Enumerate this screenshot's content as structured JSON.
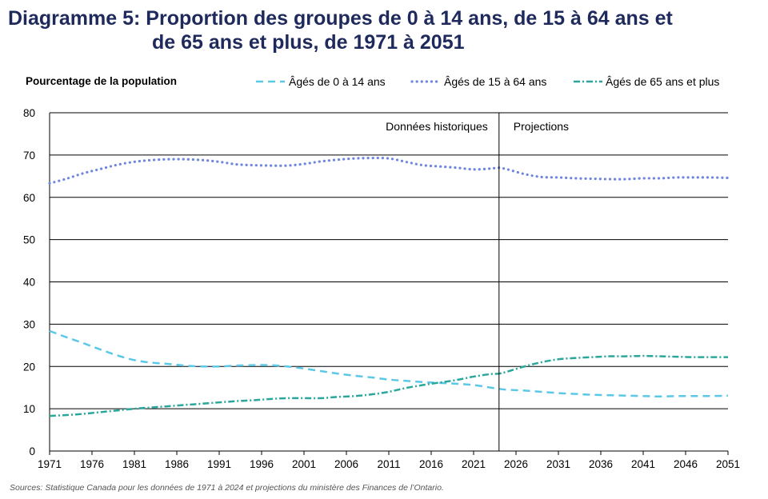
{
  "title_line1": "Diagramme 5: Proportion des groupes de 0 à 14 ans, de 15 à 64 ans et",
  "title_line2": "de 65 ans et plus, de 1971 à 2051",
  "source": "Sources: Statistique Canada pour les données de 1971 à 2024 et projections du ministère des Finances de l’Ontario.",
  "colors": {
    "youth": "#5bc8e6",
    "working": "#6f86e0",
    "senior": "#2aa79b",
    "grid": "#000000"
  },
  "chart_data": {
    "type": "line",
    "title": "Diagramme 5: Proportion des groupes de 0 à 14 ans, de 15 à 64 ans et de 65 ans et plus, de 1971 à 2051",
    "ylabel": "Pourcentage de la population",
    "xlabel": "",
    "xlim": [
      1971,
      2051
    ],
    "ylim": [
      0,
      80
    ],
    "yticks": [
      "0",
      "10",
      "20",
      "30",
      "40",
      "50",
      "60",
      "70",
      "80"
    ],
    "xticks": [
      "1971",
      "1976",
      "1981",
      "1986",
      "1991",
      "1996",
      "2001",
      "2006",
      "2011",
      "2016",
      "2021",
      "2026",
      "2031",
      "2036",
      "2041",
      "2046",
      "2051"
    ],
    "divider_year": 2024,
    "annotations": {
      "historical": "Données historiques",
      "projections": "Projections"
    },
    "x": [
      1971,
      1973,
      1975,
      1977,
      1979,
      1981,
      1983,
      1985,
      1987,
      1989,
      1991,
      1993,
      1995,
      1997,
      1999,
      2001,
      2003,
      2005,
      2007,
      2009,
      2011,
      2013,
      2015,
      2017,
      2019,
      2021,
      2023,
      2024,
      2025,
      2027,
      2029,
      2031,
      2033,
      2035,
      2037,
      2039,
      2041,
      2043,
      2045,
      2047,
      2049,
      2051
    ],
    "series": [
      {
        "name": "Âgés de 0 à 14 ans",
        "style": "dashed",
        "values": [
          28.4,
          26.9,
          25.5,
          24.0,
          22.6,
          21.5,
          20.9,
          20.6,
          20.2,
          20.0,
          20.0,
          20.2,
          20.3,
          20.3,
          20.0,
          19.5,
          18.9,
          18.3,
          17.8,
          17.4,
          16.9,
          16.6,
          16.3,
          16.1,
          15.9,
          15.6,
          15.0,
          14.7,
          14.5,
          14.3,
          14.0,
          13.7,
          13.5,
          13.3,
          13.2,
          13.1,
          13.0,
          12.9,
          13.0,
          13.0,
          13.0,
          13.1
        ]
      },
      {
        "name": "Âgés de 15 à 64 ans",
        "style": "dotted",
        "values": [
          63.3,
          64.4,
          65.7,
          66.7,
          67.7,
          68.4,
          68.8,
          69.0,
          69.0,
          68.8,
          68.4,
          67.8,
          67.6,
          67.5,
          67.5,
          67.9,
          68.5,
          68.9,
          69.2,
          69.3,
          69.2,
          68.4,
          67.6,
          67.3,
          67.0,
          66.6,
          66.8,
          67.0,
          66.6,
          65.5,
          64.8,
          64.7,
          64.5,
          64.4,
          64.3,
          64.3,
          64.5,
          64.5,
          64.7,
          64.7,
          64.7,
          64.6
        ]
      },
      {
        "name": "Âgés de 65 ans et plus",
        "style": "dashdot",
        "values": [
          8.3,
          8.5,
          8.8,
          9.2,
          9.6,
          10.0,
          10.3,
          10.6,
          10.9,
          11.2,
          11.5,
          11.8,
          12.0,
          12.3,
          12.5,
          12.5,
          12.5,
          12.8,
          13.0,
          13.4,
          14.0,
          14.9,
          15.6,
          16.2,
          16.8,
          17.6,
          18.2,
          18.3,
          18.8,
          20.0,
          21.0,
          21.7,
          22.0,
          22.2,
          22.4,
          22.4,
          22.5,
          22.4,
          22.3,
          22.2,
          22.2,
          22.2
        ]
      }
    ]
  }
}
